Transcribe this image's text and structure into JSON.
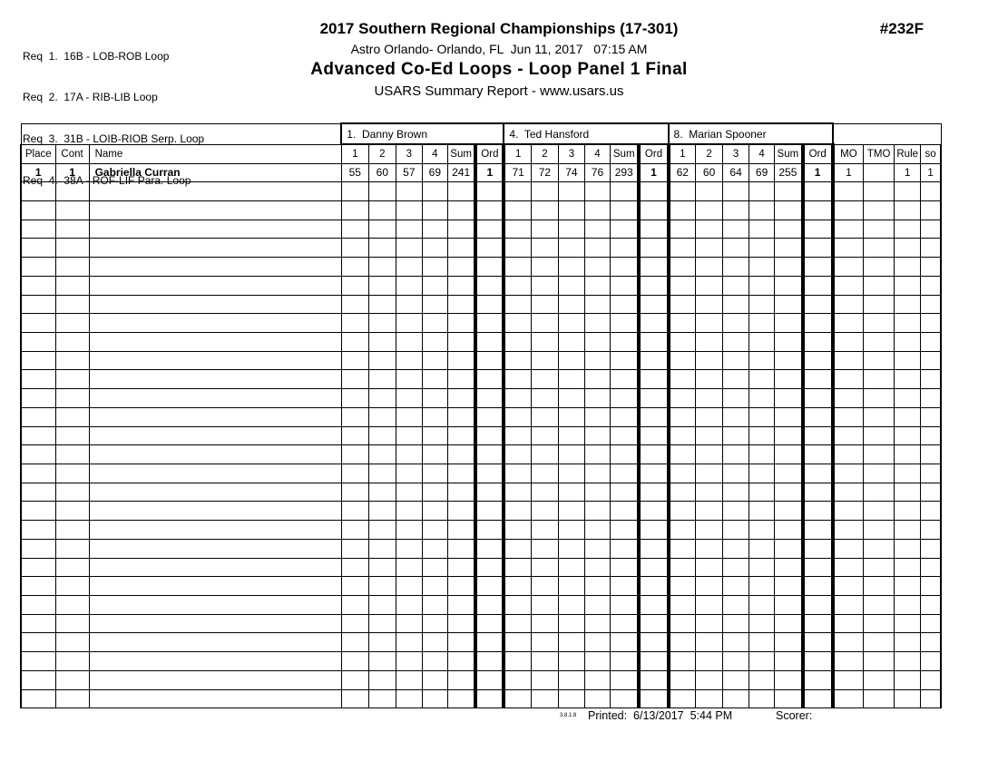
{
  "requirements": {
    "items": [
      "Req  1.  16B - LOB-ROB Loop",
      "Req  2.  17A - RIB-LIB Loop",
      "Req  3.  31B - LOIB-RIOB Serp. Loop",
      "Req  4.  38A - ROF-LIF Para. Loop"
    ]
  },
  "header": {
    "title": "2017 Southern Regional Championships (17-301)",
    "venue_line": "Astro Orlando- Orlando, FL  Jun 11, 2017   07:15 AM",
    "event_line": "Advanced Co-Ed Loops - Loop Panel 1 Final",
    "report_line": "USARS Summary Report - www.usars.us",
    "doc_number": "#232F"
  },
  "judges": [
    {
      "label": "1.  Danny Brown"
    },
    {
      "label": "4.  Ted Hansford"
    },
    {
      "label": "8.  Marian Spooner"
    }
  ],
  "table": {
    "columns": {
      "place": "Place",
      "cont": "Cont",
      "name": "Name",
      "score_cols": [
        "1",
        "2",
        "3",
        "4",
        "Sum",
        "Ord"
      ],
      "mo": "MO",
      "tmo": "TMO",
      "rule": "Rule",
      "so": "so"
    },
    "rows": [
      {
        "place": "1",
        "cont": "1",
        "name": "Gabriella Curran",
        "judge1": {
          "s1": "55",
          "s2": "60",
          "s3": "57",
          "s4": "69",
          "sum": "241",
          "ord": "1"
        },
        "judge2": {
          "s1": "71",
          "s2": "72",
          "s3": "74",
          "s4": "76",
          "sum": "293",
          "ord": "1"
        },
        "judge3": {
          "s1": "62",
          "s2": "60",
          "s3": "64",
          "s4": "69",
          "sum": "255",
          "ord": "1"
        },
        "mo": "1",
        "tmo": "",
        "rule": "1",
        "so": "1"
      }
    ],
    "empty_row_count": 28
  },
  "footer": {
    "version": "3.8.1.8",
    "printed_label": "Printed:  6/13/2017  5:44 PM",
    "scorer_label": "Scorer:"
  }
}
